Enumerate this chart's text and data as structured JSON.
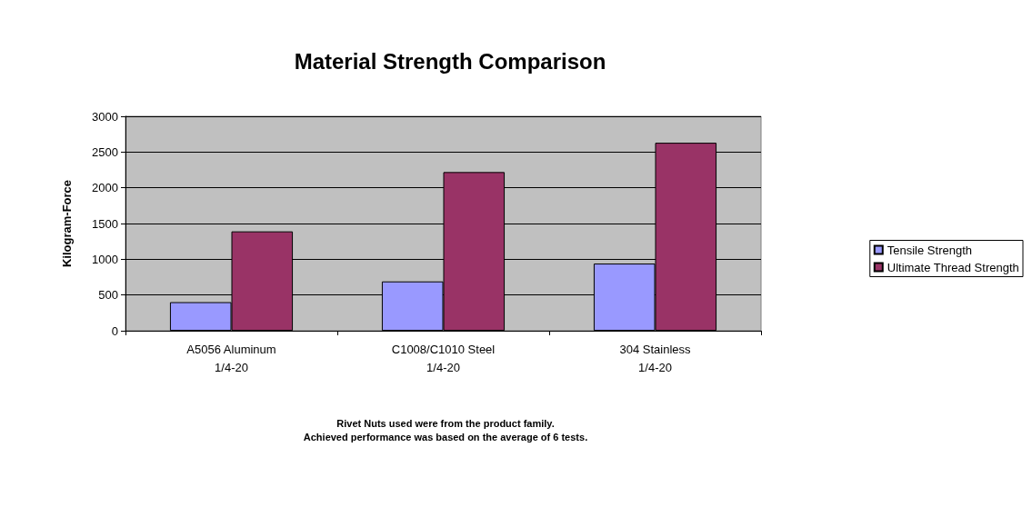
{
  "chart_data": {
    "type": "bar",
    "title": "Material Strength Comparison",
    "ylabel": "Kilogram-Force",
    "categories": [
      "A5056 Aluminum\n1/4-20",
      "C1008/C1010 Steel\n1/4-20",
      "304 Stainless\n1/4-20"
    ],
    "series": [
      {
        "name": "Tensile Strength",
        "color": "#9999ff",
        "values": [
          400,
          690,
          940
        ]
      },
      {
        "name": "Ultimate Thread Strength",
        "color": "#993366",
        "values": [
          1390,
          2220,
          2630
        ]
      }
    ],
    "ylim": [
      0,
      3000
    ],
    "yticks": [
      0,
      500,
      1000,
      1500,
      2000,
      2500,
      3000
    ],
    "grid": "y",
    "legend": "right",
    "annotations": [
      "Rivet Nuts used were from the product family.",
      "Achieved performance was based on the average of 6 tests."
    ]
  }
}
